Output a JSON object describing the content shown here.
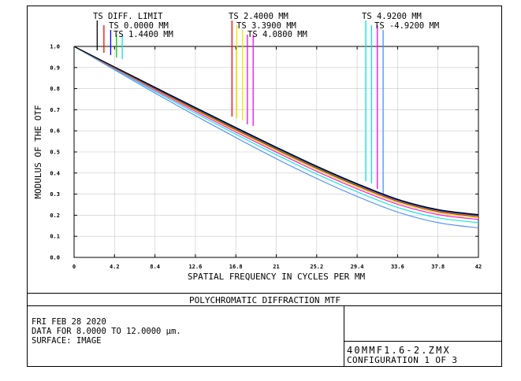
{
  "chart_data": {
    "type": "line",
    "title": "POLYCHROMATIC DIFFRACTION MTF",
    "xlabel": "SPATIAL FREQUENCY IN CYCLES PER MM",
    "ylabel": "MODULUS OF THE OTF",
    "xlim": [
      0,
      42
    ],
    "ylim": [
      0,
      1
    ],
    "x_ticks": [
      "0",
      "4.2",
      "8.4",
      "12.6",
      "16.8",
      "21",
      "25.2",
      "29.4",
      "33.6",
      "37.8",
      "42"
    ],
    "y_ticks": [
      "0.0",
      "0.1",
      "0.2",
      "0.3",
      "0.4",
      "0.5",
      "0.6",
      "0.7",
      "0.8",
      "0.9",
      "1.0"
    ],
    "grid": true,
    "x": [
      0,
      4.2,
      8.4,
      12.6,
      16.8,
      21,
      25.2,
      29.4,
      33.6,
      37.8,
      42
    ],
    "series": [
      {
        "name": "TS DIFF. LIMIT",
        "color": "#000000",
        "values": [
          1.0,
          0.903,
          0.807,
          0.711,
          0.616,
          0.523,
          0.433,
          0.35,
          0.276,
          0.227,
          0.203
        ]
      },
      {
        "name": "TS 0.0000 MM",
        "color": "#0000ff",
        "values": [
          1.0,
          0.902,
          0.804,
          0.708,
          0.613,
          0.52,
          0.43,
          0.347,
          0.273,
          0.224,
          0.2
        ]
      },
      {
        "name": "TS 1.4400 MM",
        "color": "#00cc00",
        "values": [
          1.0,
          0.901,
          0.802,
          0.705,
          0.61,
          0.517,
          0.427,
          0.344,
          0.271,
          0.222,
          0.198
        ]
      },
      {
        "name": "TS 2.4000 MM",
        "color": "#ff0000",
        "values": [
          1.0,
          0.899,
          0.799,
          0.701,
          0.605,
          0.512,
          0.422,
          0.339,
          0.266,
          0.217,
          0.193
        ]
      },
      {
        "name": "TS 3.3900 MM",
        "color": "#e6e600",
        "values": [
          1.0,
          0.898,
          0.796,
          0.697,
          0.6,
          0.506,
          0.416,
          0.333,
          0.26,
          0.211,
          0.187
        ]
      },
      {
        "name": "TS 4.0800 MM",
        "color": "#ff00ff",
        "values": [
          1.0,
          0.896,
          0.793,
          0.692,
          0.594,
          0.499,
          0.408,
          0.325,
          0.252,
          0.203,
          0.18
        ]
      },
      {
        "name": "TS 4.9200 MM",
        "color": "#00e5e5",
        "values": [
          1.0,
          0.893,
          0.787,
          0.684,
          0.584,
          0.487,
          0.395,
          0.311,
          0.237,
          0.188,
          0.165
        ]
      },
      {
        "name": "TS -4.9200 MM",
        "color": "#4d8cff",
        "values": [
          1.0,
          0.889,
          0.779,
          0.672,
          0.568,
          0.468,
          0.374,
          0.289,
          0.215,
          0.165,
          0.14
        ]
      }
    ],
    "legend_marker_x": [
      2.4,
      3.1,
      3.8,
      4.4,
      5.0,
      16.4,
      16.9,
      17.5,
      18.0,
      18.6,
      30.3,
      30.9,
      31.5,
      32.1
    ]
  },
  "info": {
    "date": "FRI FEB 28 2020",
    "data_range": "DATA FOR 8.0000 TO 12.0000 μm.",
    "surface": "SURFACE: IMAGE",
    "file": "40MMF1.6-2.ZMX",
    "configuration": "CONFIGURATION 1 OF 3"
  }
}
